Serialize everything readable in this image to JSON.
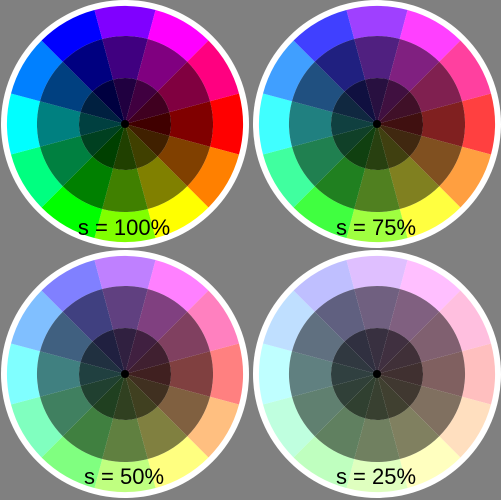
{
  "background_color": "#808080",
  "ring_border_color": "#ffffff",
  "hue_segment_count": 12,
  "brightness_rings": [
    1.0,
    0.5,
    0.25
  ],
  "wheels": [
    {
      "saturation": 1.0,
      "label": "s = 100%"
    },
    {
      "saturation": 0.75,
      "label": "s = 75%"
    },
    {
      "saturation": 0.5,
      "label": "s = 50%"
    },
    {
      "saturation": 0.25,
      "label": "s = 25%"
    }
  ]
}
